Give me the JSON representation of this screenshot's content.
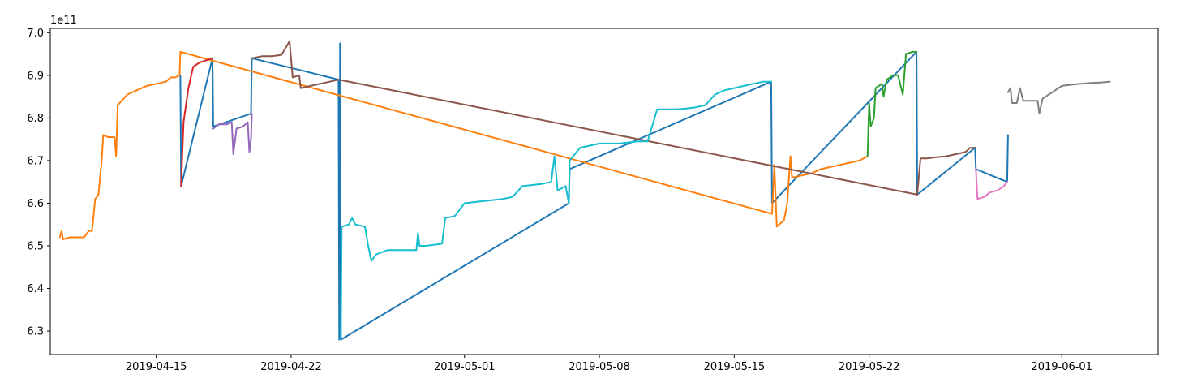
{
  "chart_data": {
    "type": "line",
    "offset_label": "1e11",
    "xlabel": "",
    "ylabel": "",
    "xlim": [
      "2019-04-09T12:00",
      "2019-06-06T00:00"
    ],
    "ylim": [
      6.245,
      7.01
    ],
    "x_ticks": [
      "2019-04-15",
      "2019-04-22",
      "2019-05-01",
      "2019-05-08",
      "2019-05-15",
      "2019-05-22",
      "2019-06-01"
    ],
    "y_ticks": [
      6.3,
      6.4,
      6.5,
      6.6,
      6.7,
      6.8,
      6.9,
      7.0
    ],
    "grid": false,
    "series": [
      {
        "color": "#1f77b4",
        "points": [
          [
            "2019-04-16T06:00",
            6.9
          ],
          [
            "2019-04-16T07:00",
            6.64
          ],
          [
            "2019-04-17T22:00",
            6.94
          ],
          [
            "2019-04-17T23:00",
            6.78
          ],
          [
            "2019-04-19T22:00",
            6.81
          ],
          [
            "2019-04-19T23:00",
            6.94
          ],
          [
            "2019-04-24T11:00",
            6.89
          ],
          [
            "2019-04-24T12:00",
            6.28
          ],
          [
            "2019-04-24T13:00",
            6.975
          ],
          [
            "2019-04-24T14:00",
            6.28
          ],
          [
            "2019-05-06T10:00",
            6.6
          ],
          [
            "2019-05-06T11:00",
            6.68
          ],
          [
            "2019-05-16T22:00",
            6.885
          ],
          [
            "2019-05-16T23:00",
            6.6
          ],
          [
            "2019-05-24T11:00",
            6.955
          ],
          [
            "2019-05-24T12:00",
            6.62
          ],
          [
            "2019-05-27T12:00",
            6.73
          ],
          [
            "2019-05-27T13:00",
            6.68
          ],
          [
            "2019-05-29T04:00",
            6.65
          ],
          [
            "2019-05-29T05:00",
            6.76
          ]
        ]
      },
      {
        "color": "#ff7f0e",
        "points": [
          [
            "2019-04-10T00:00",
            6.52
          ],
          [
            "2019-04-10T02:00",
            6.535
          ],
          [
            "2019-04-10T04:00",
            6.515
          ],
          [
            "2019-04-10T12:00",
            6.52
          ],
          [
            "2019-04-11T00:00",
            6.52
          ],
          [
            "2019-04-11T06:00",
            6.52
          ],
          [
            "2019-04-11T12:00",
            6.535
          ],
          [
            "2019-04-11T16:00",
            6.535
          ],
          [
            "2019-04-11T20:00",
            6.61
          ],
          [
            "2019-04-12T00:00",
            6.62
          ],
          [
            "2019-04-12T04:00",
            6.7
          ],
          [
            "2019-04-12T06:00",
            6.76
          ],
          [
            "2019-04-12T12:00",
            6.755
          ],
          [
            "2019-04-12T20:00",
            6.755
          ],
          [
            "2019-04-12T22:00",
            6.71
          ],
          [
            "2019-04-13T00:00",
            6.83
          ],
          [
            "2019-04-13T12:00",
            6.855
          ],
          [
            "2019-04-14T00:00",
            6.865
          ],
          [
            "2019-04-14T12:00",
            6.875
          ],
          [
            "2019-04-15T00:00",
            6.88
          ],
          [
            "2019-04-15T12:00",
            6.885
          ],
          [
            "2019-04-15T18:00",
            6.895
          ],
          [
            "2019-04-16T00:00",
            6.895
          ],
          [
            "2019-04-16T05:00",
            6.9
          ],
          [
            "2019-04-16T06:00",
            6.955
          ],
          [
            "2019-05-16T23:00",
            6.575
          ],
          [
            "2019-05-17T02:00",
            6.69
          ],
          [
            "2019-05-17T05:00",
            6.545
          ],
          [
            "2019-05-17T08:00",
            6.55
          ],
          [
            "2019-05-17T14:00",
            6.56
          ],
          [
            "2019-05-17T18:00",
            6.6
          ],
          [
            "2019-05-17T22:00",
            6.71
          ],
          [
            "2019-05-18T00:00",
            6.66
          ],
          [
            "2019-05-18T12:00",
            6.665
          ],
          [
            "2019-05-19T00:00",
            6.67
          ],
          [
            "2019-05-19T12:00",
            6.68
          ],
          [
            "2019-05-20T00:00",
            6.685
          ],
          [
            "2019-05-20T12:00",
            6.69
          ],
          [
            "2019-05-21T00:00",
            6.695
          ],
          [
            "2019-05-21T12:00",
            6.7
          ],
          [
            "2019-05-21T22:00",
            6.71
          ]
        ]
      },
      {
        "color": "#2ca02c",
        "points": [
          [
            "2019-05-21T22:00",
            6.71
          ],
          [
            "2019-05-22T00:00",
            6.835
          ],
          [
            "2019-05-22T02:00",
            6.78
          ],
          [
            "2019-05-22T06:00",
            6.8
          ],
          [
            "2019-05-22T08:00",
            6.87
          ],
          [
            "2019-05-22T16:00",
            6.88
          ],
          [
            "2019-05-22T18:00",
            6.85
          ],
          [
            "2019-05-22T22:00",
            6.89
          ],
          [
            "2019-05-23T06:00",
            6.9
          ],
          [
            "2019-05-23T12:00",
            6.9
          ],
          [
            "2019-05-23T18:00",
            6.855
          ],
          [
            "2019-05-23T22:00",
            6.95
          ],
          [
            "2019-05-24T06:00",
            6.955
          ],
          [
            "2019-05-24T11:00",
            6.955
          ]
        ]
      },
      {
        "color": "#d62728",
        "points": [
          [
            "2019-04-16T07:00",
            6.64
          ],
          [
            "2019-04-16T10:00",
            6.79
          ],
          [
            "2019-04-16T16:00",
            6.87
          ],
          [
            "2019-04-16T22:00",
            6.92
          ],
          [
            "2019-04-17T06:00",
            6.93
          ],
          [
            "2019-04-17T14:00",
            6.935
          ],
          [
            "2019-04-17T22:00",
            6.94
          ]
        ]
      },
      {
        "color": "#9467bd",
        "points": [
          [
            "2019-04-17T23:00",
            6.775
          ],
          [
            "2019-04-18T06:00",
            6.785
          ],
          [
            "2019-04-18T16:00",
            6.785
          ],
          [
            "2019-04-18T22:00",
            6.79
          ],
          [
            "2019-04-19T00:00",
            6.715
          ],
          [
            "2019-04-19T04:00",
            6.775
          ],
          [
            "2019-04-19T12:00",
            6.78
          ],
          [
            "2019-04-19T18:00",
            6.79
          ],
          [
            "2019-04-19T20:00",
            6.72
          ],
          [
            "2019-04-19T22:00",
            6.75
          ],
          [
            "2019-04-19T23:00",
            6.81
          ]
        ]
      },
      {
        "color": "#8c564b",
        "points": [
          [
            "2019-04-19T23:00",
            6.94
          ],
          [
            "2019-04-20T12:00",
            6.945
          ],
          [
            "2019-04-21T00:00",
            6.945
          ],
          [
            "2019-04-21T12:00",
            6.948
          ],
          [
            "2019-04-21T22:00",
            6.98
          ],
          [
            "2019-04-22T02:00",
            6.895
          ],
          [
            "2019-04-22T10:00",
            6.9
          ],
          [
            "2019-04-22T12:00",
            6.87
          ],
          [
            "2019-04-23T00:00",
            6.875
          ],
          [
            "2019-04-23T12:00",
            6.88
          ],
          [
            "2019-04-24T00:00",
            6.885
          ],
          [
            "2019-04-24T11:00",
            6.89
          ],
          [
            "2019-05-24T12:00",
            6.62
          ],
          [
            "2019-05-24T16:00",
            6.705
          ],
          [
            "2019-05-25T00:00",
            6.705
          ],
          [
            "2019-05-25T12:00",
            6.708
          ],
          [
            "2019-05-26T00:00",
            6.71
          ],
          [
            "2019-05-26T12:00",
            6.715
          ],
          [
            "2019-05-27T00:00",
            6.72
          ],
          [
            "2019-05-27T06:00",
            6.73
          ],
          [
            "2019-05-27T12:00",
            6.73
          ]
        ]
      },
      {
        "color": "#e377c2",
        "points": [
          [
            "2019-05-27T13:00",
            6.68
          ],
          [
            "2019-05-27T15:00",
            6.61
          ],
          [
            "2019-05-28T00:00",
            6.615
          ],
          [
            "2019-05-28T06:00",
            6.625
          ],
          [
            "2019-05-28T16:00",
            6.63
          ],
          [
            "2019-05-29T00:00",
            6.64
          ],
          [
            "2019-05-29T04:00",
            6.65
          ]
        ]
      },
      {
        "color": "#7f7f7f",
        "points": [
          [
            "2019-05-29T05:00",
            6.86
          ],
          [
            "2019-05-29T08:00",
            6.87
          ],
          [
            "2019-05-29T10:00",
            6.835
          ],
          [
            "2019-05-29T16:00",
            6.835
          ],
          [
            "2019-05-29T20:00",
            6.87
          ],
          [
            "2019-05-30T00:00",
            6.84
          ],
          [
            "2019-05-30T12:00",
            6.84
          ],
          [
            "2019-05-30T18:00",
            6.84
          ],
          [
            "2019-05-30T20:00",
            6.81
          ],
          [
            "2019-05-31T00:00",
            6.845
          ],
          [
            "2019-05-31T12:00",
            6.86
          ],
          [
            "2019-06-01T00:00",
            6.875
          ],
          [
            "2019-06-01T12:00",
            6.878
          ],
          [
            "2019-06-02T00:00",
            6.88
          ],
          [
            "2019-06-02T12:00",
            6.882
          ],
          [
            "2019-06-03T00:00",
            6.883
          ],
          [
            "2019-06-03T12:00",
            6.885
          ]
        ]
      },
      {
        "color": "#17becf",
        "points": [
          [
            "2019-04-24T14:00",
            6.28
          ],
          [
            "2019-04-24T15:00",
            6.545
          ],
          [
            "2019-04-25T00:00",
            6.55
          ],
          [
            "2019-04-25T04:00",
            6.565
          ],
          [
            "2019-04-25T08:00",
            6.55
          ],
          [
            "2019-04-25T20:00",
            6.545
          ],
          [
            "2019-04-26T00:00",
            6.5
          ],
          [
            "2019-04-26T04:00",
            6.465
          ],
          [
            "2019-04-26T10:00",
            6.48
          ],
          [
            "2019-04-27T00:00",
            6.49
          ],
          [
            "2019-04-28T00:00",
            6.49
          ],
          [
            "2019-04-28T12:00",
            6.49
          ],
          [
            "2019-04-28T14:00",
            6.53
          ],
          [
            "2019-04-28T16:00",
            6.5
          ],
          [
            "2019-04-29T00:00",
            6.5
          ],
          [
            "2019-04-29T20:00",
            6.505
          ],
          [
            "2019-04-30T00:00",
            6.565
          ],
          [
            "2019-04-30T12:00",
            6.57
          ],
          [
            "2019-05-01T00:00",
            6.6
          ],
          [
            "2019-05-02T00:00",
            6.605
          ],
          [
            "2019-05-03T00:00",
            6.61
          ],
          [
            "2019-05-03T12:00",
            6.615
          ],
          [
            "2019-05-04T00:00",
            6.64
          ],
          [
            "2019-05-05T00:00",
            6.645
          ],
          [
            "2019-05-05T12:00",
            6.65
          ],
          [
            "2019-05-05T16:00",
            6.71
          ],
          [
            "2019-05-05T20:00",
            6.63
          ],
          [
            "2019-05-06T06:00",
            6.64
          ],
          [
            "2019-05-06T10:00",
            6.6
          ],
          [
            "2019-05-06T11:00",
            6.7
          ],
          [
            "2019-05-07T00:00",
            6.73
          ],
          [
            "2019-05-08T00:00",
            6.74
          ],
          [
            "2019-05-09T00:00",
            6.74
          ],
          [
            "2019-05-10T00:00",
            6.745
          ],
          [
            "2019-05-10T12:00",
            6.745
          ],
          [
            "2019-05-11T00:00",
            6.82
          ],
          [
            "2019-05-12T00:00",
            6.82
          ],
          [
            "2019-05-12T12:00",
            6.822
          ],
          [
            "2019-05-13T00:00",
            6.825
          ],
          [
            "2019-05-13T12:00",
            6.83
          ],
          [
            "2019-05-14T00:00",
            6.855
          ],
          [
            "2019-05-14T12:00",
            6.865
          ],
          [
            "2019-05-15T00:00",
            6.87
          ],
          [
            "2019-05-15T12:00",
            6.875
          ],
          [
            "2019-05-16T00:00",
            6.88
          ],
          [
            "2019-05-16T12:00",
            6.885
          ],
          [
            "2019-05-16T22:00",
            6.885
          ]
        ]
      }
    ]
  }
}
